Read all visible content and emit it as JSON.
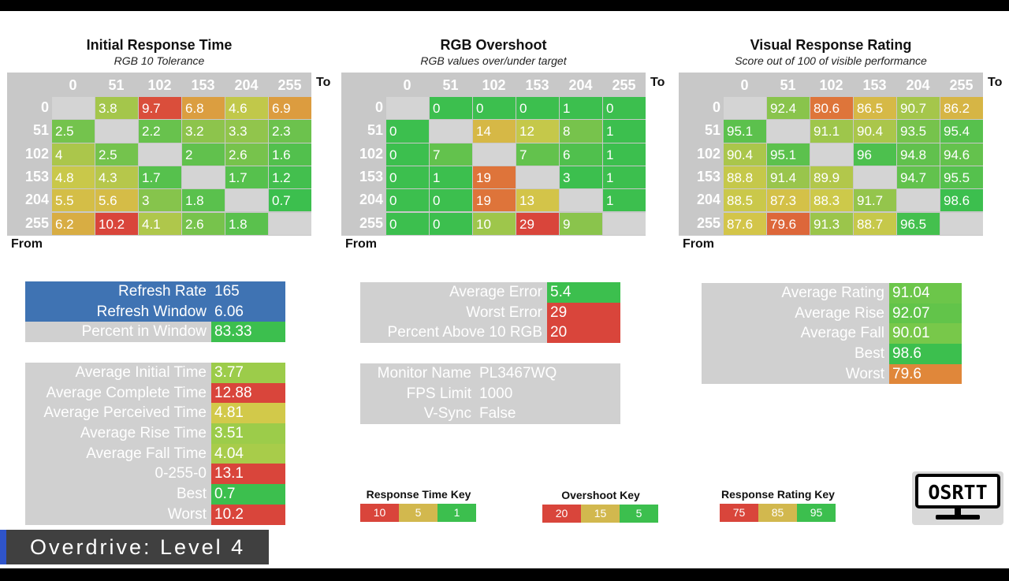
{
  "colors": {
    "grid_gray": "#c8c8c8",
    "good": "#3cbf4e",
    "bad": "#d9453b",
    "blue": "#3f73b3"
  },
  "panels": [
    {
      "title": "Initial Response Time",
      "subtitle": "RGB 10 Tolerance",
      "levels": [
        "0",
        "51",
        "102",
        "153",
        "204",
        "255"
      ],
      "to_label": "To",
      "from_label": "From",
      "metric": "time",
      "rows": [
        [
          null,
          "3.8",
          "9.7",
          "6.8",
          "4.6",
          "6.9"
        ],
        [
          "2.5",
          null,
          "2.2",
          "3.2",
          "3.3",
          "2.3"
        ],
        [
          "4",
          "2.5",
          null,
          "2",
          "2.6",
          "1.6"
        ],
        [
          "4.8",
          "4.3",
          "1.7",
          null,
          "1.7",
          "1.2"
        ],
        [
          "5.5",
          "5.6",
          "3",
          "1.8",
          null,
          "0.7"
        ],
        [
          "6.2",
          "10.2",
          "4.1",
          "2.6",
          "1.8",
          null
        ]
      ]
    },
    {
      "title": "RGB Overshoot",
      "subtitle": "RGB values over/under target",
      "levels": [
        "0",
        "51",
        "102",
        "153",
        "204",
        "255"
      ],
      "to_label": "To",
      "from_label": "From",
      "metric": "overshoot",
      "rows": [
        [
          null,
          "0",
          "0",
          "0",
          "1",
          "0"
        ],
        [
          "0",
          null,
          "14",
          "12",
          "8",
          "1"
        ],
        [
          "0",
          "7",
          null,
          "7",
          "6",
          "1"
        ],
        [
          "0",
          "1",
          "19",
          null,
          "3",
          "1"
        ],
        [
          "0",
          "0",
          "19",
          "13",
          null,
          "1"
        ],
        [
          "0",
          "0",
          "10",
          "29",
          "9",
          null
        ]
      ]
    },
    {
      "title": "Visual Response Rating",
      "subtitle": "Score out of 100 of visible performance",
      "levels": [
        "0",
        "51",
        "102",
        "153",
        "204",
        "255"
      ],
      "to_label": "To",
      "from_label": "From",
      "metric": "rating",
      "rows": [
        [
          null,
          "92.4",
          "80.6",
          "86.5",
          "90.7",
          "86.2"
        ],
        [
          "95.1",
          null,
          "91.1",
          "90.4",
          "93.5",
          "95.4"
        ],
        [
          "90.4",
          "95.1",
          null,
          "96",
          "94.8",
          "94.6"
        ],
        [
          "88.8",
          "91.4",
          "89.9",
          null,
          "94.7",
          "95.5"
        ],
        [
          "88.5",
          "87.3",
          "88.3",
          "91.7",
          null,
          "98.6"
        ],
        [
          "87.6",
          "79.6",
          "91.3",
          "88.7",
          "96.5",
          null
        ]
      ]
    }
  ],
  "refresh_table": [
    {
      "label": "Refresh Rate",
      "value": "165",
      "label_color": "#3f73b3",
      "value_color": "#3f73b3"
    },
    {
      "label": "Refresh Window",
      "value": "6.06",
      "label_color": "#3f73b3",
      "value_color": "#3f73b3"
    },
    {
      "label": "Percent in Window",
      "value": "83.33",
      "label_color": "#d0d0d0",
      "value_color": "#3cbf4e"
    }
  ],
  "time_table": [
    {
      "label": "Average Initial Time",
      "value": "3.77",
      "label_color": "#d0d0d0",
      "value_color": "#9ccc4a"
    },
    {
      "label": "Average Complete Time",
      "value": "12.88",
      "label_color": "#d0d0d0",
      "value_color": "#d9453b"
    },
    {
      "label": "Average Perceived Time",
      "value": "4.81",
      "label_color": "#d0d0d0",
      "value_color": "#d2c94a"
    },
    {
      "label": "Average Rise Time",
      "value": "3.51",
      "label_color": "#d0d0d0",
      "value_color": "#9ccc4a"
    },
    {
      "label": "Average Fall Time",
      "value": "4.04",
      "label_color": "#d0d0d0",
      "value_color": "#a8cc4a"
    },
    {
      "label": "0-255-0",
      "value": "13.1",
      "label_color": "#d0d0d0",
      "value_color": "#d9453b"
    },
    {
      "label": "Best",
      "value": "0.7",
      "label_color": "#d0d0d0",
      "value_color": "#3cbf4e"
    },
    {
      "label": "Worst",
      "value": "10.2",
      "label_color": "#d0d0d0",
      "value_color": "#d9453b"
    }
  ],
  "error_table": [
    {
      "label": "Average Error",
      "value": "5.4",
      "label_color": "#d0d0d0",
      "value_color": "#3cbf4e"
    },
    {
      "label": "Worst Error",
      "value": "29",
      "label_color": "#d0d0d0",
      "value_color": "#d9453b"
    },
    {
      "label": "Percent Above 10 RGB",
      "value": "20",
      "label_color": "#d0d0d0",
      "value_color": "#d9453b"
    }
  ],
  "monitor_table": [
    {
      "label": "Monitor Name",
      "value": "PL3467WQ",
      "label_color": "#d0d0d0",
      "value_color": "#d0d0d0"
    },
    {
      "label": "FPS Limit",
      "value": "1000",
      "label_color": "#d0d0d0",
      "value_color": "#d0d0d0"
    },
    {
      "label": "V-Sync",
      "value": "False",
      "label_color": "#d0d0d0",
      "value_color": "#d0d0d0"
    }
  ],
  "rating_table": [
    {
      "label": "Average Rating",
      "value": "91.04",
      "label_color": "#d0d0d0",
      "value_color": "#6cc64a"
    },
    {
      "label": "Average Rise",
      "value": "92.07",
      "label_color": "#d0d0d0",
      "value_color": "#62c44a"
    },
    {
      "label": "Average Fall",
      "value": "90.01",
      "label_color": "#d0d0d0",
      "value_color": "#78c84a"
    },
    {
      "label": "Best",
      "value": "98.6",
      "label_color": "#d0d0d0",
      "value_color": "#3cbf4e"
    },
    {
      "label": "Worst",
      "value": "79.6",
      "label_color": "#d0d0d0",
      "value_color": "#e0873a"
    }
  ],
  "keys": [
    {
      "title": "Response Time Key",
      "cells": [
        {
          "label": "10",
          "color": "#d9453b"
        },
        {
          "label": "5",
          "color": "#d2b84e"
        },
        {
          "label": "1",
          "color": "#3cbf4e"
        }
      ]
    },
    {
      "title": "Overshoot Key",
      "cells": [
        {
          "label": "20",
          "color": "#d9453b"
        },
        {
          "label": "15",
          "color": "#d2b84e"
        },
        {
          "label": "5",
          "color": "#3cbf4e"
        }
      ]
    },
    {
      "title": "Response Rating Key",
      "cells": [
        {
          "label": "75",
          "color": "#d9453b"
        },
        {
          "label": "85",
          "color": "#d2b84e"
        },
        {
          "label": "95",
          "color": "#3cbf4e"
        }
      ]
    }
  ],
  "logo": {
    "text": "OSRTT",
    "icon": "monitor-logo-icon"
  },
  "banner": {
    "text": "Overdrive: Level 4"
  }
}
